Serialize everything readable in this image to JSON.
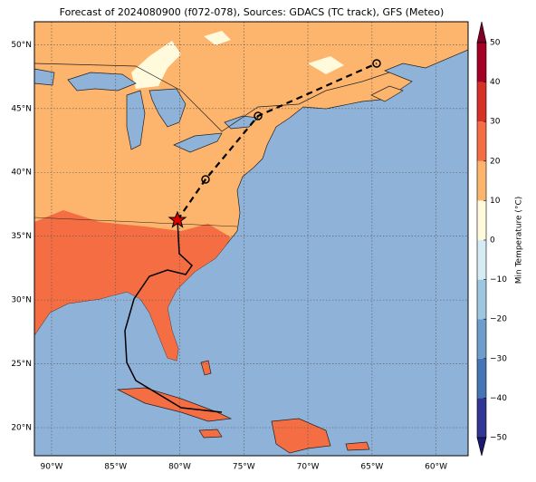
{
  "title": "Forecast of 2024080900 (f072-078), Sources: GDACS (TC track), GFS (Meteo)",
  "map": {
    "lon_range": [
      -91.34,
      -57.5
    ],
    "lat_range": [
      17.8,
      51.8
    ],
    "lon_ticks": [
      {
        "value": -90,
        "label": "90°W"
      },
      {
        "value": -85,
        "label": "85°W"
      },
      {
        "value": -80,
        "label": "80°W"
      },
      {
        "value": -75,
        "label": "75°W"
      },
      {
        "value": -70,
        "label": "70°W"
      },
      {
        "value": -65,
        "label": "65°W"
      },
      {
        "value": -60,
        "label": "60°W"
      }
    ],
    "lat_ticks": [
      {
        "value": 20,
        "label": "20°N"
      },
      {
        "value": 25,
        "label": "25°N"
      },
      {
        "value": 30,
        "label": "30°N"
      },
      {
        "value": 35,
        "label": "35°N"
      },
      {
        "value": 40,
        "label": "40°N"
      },
      {
        "value": 45,
        "label": "45°N"
      },
      {
        "value": 50,
        "label": "50°N"
      }
    ]
  },
  "colorbar": {
    "label": "Min Temperature (°C)",
    "range": [
      -50,
      50
    ],
    "ticks": [
      {
        "value": -50,
        "label": "−50"
      },
      {
        "value": -40,
        "label": "−40"
      },
      {
        "value": -30,
        "label": "−30"
      },
      {
        "value": -20,
        "label": "−20"
      },
      {
        "value": -10,
        "label": "−10"
      },
      0,
      10,
      20,
      30,
      40,
      50
    ]
  }
}
